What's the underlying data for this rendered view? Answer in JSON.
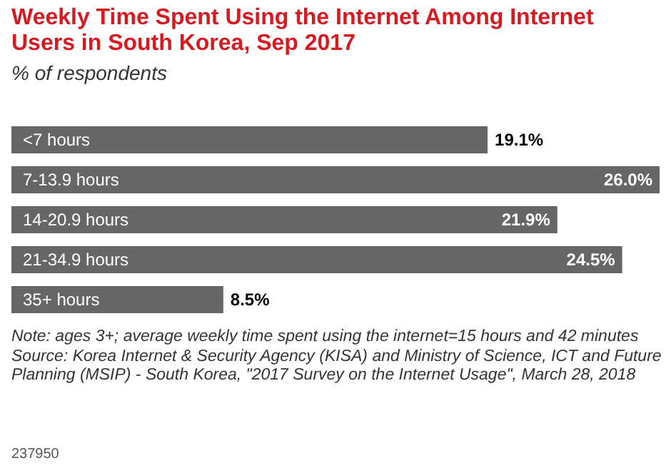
{
  "chart_data": {
    "type": "bar",
    "orientation": "horizontal",
    "title": "Weekly Time Spent Using the Internet Among Internet Users in South Korea, Sep 2017",
    "subtitle": "% of respondents",
    "categories": [
      "<7 hours",
      "7-13.9 hours",
      "14-20.9 hours",
      "21-34.9 hours",
      "35+ hours"
    ],
    "values": [
      19.1,
      26.0,
      21.9,
      24.5,
      8.5
    ],
    "value_labels": [
      "19.1%",
      "26.0%",
      "21.9%",
      "24.5%",
      "8.5%"
    ],
    "color": "#666666",
    "annotations": [
      "Note: ages 3+; average weekly time spent using the internet=15 hours and 42 minutes",
      "Source: Korea Internet & Security Agency (KISA) and Ministry of Science, ICT and Future Planning (MSIP) - South Korea, \"2017 Survey on the Internet Usage\", March 28, 2018",
      "237950"
    ]
  }
}
